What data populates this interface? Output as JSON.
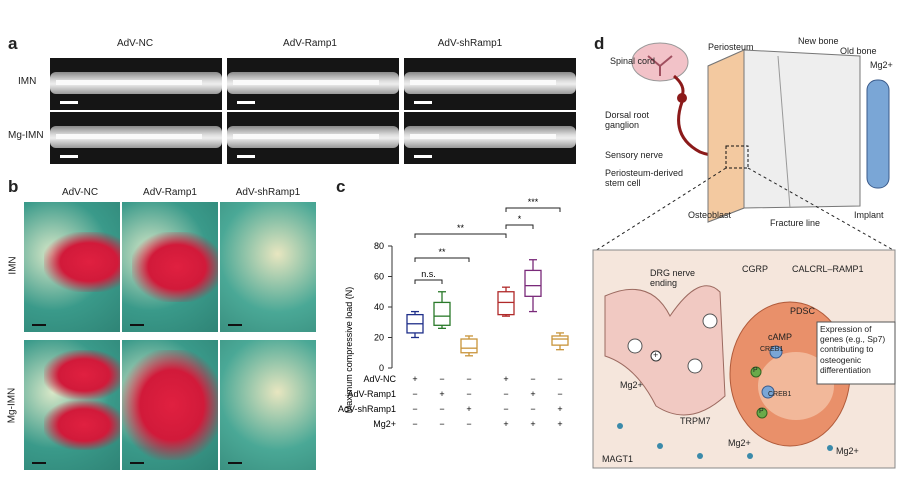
{
  "panels": {
    "a": "a",
    "b": "b",
    "c": "c",
    "d": "d"
  },
  "panel_a": {
    "columns": [
      "AdV-NC",
      "AdV-Ramp1",
      "AdV-shRamp1"
    ],
    "rows": [
      "IMN",
      "Mg-IMN"
    ]
  },
  "panel_b": {
    "columns": [
      "AdV-NC",
      "AdV-Ramp1",
      "AdV-shRamp1"
    ],
    "rows": [
      "IMN",
      "Mg-IMN"
    ]
  },
  "chart_data": {
    "type": "boxplot",
    "ylabel": "Maximum compressive load (N)",
    "ylim": [
      0,
      80
    ],
    "yticks": [
      "0",
      "20",
      "40",
      "60",
      "80"
    ],
    "groups": [
      {
        "color": "#1f2f8a",
        "min": 20,
        "q1": 23,
        "median": 29,
        "q3": 35,
        "max": 37
      },
      {
        "color": "#2a7a2a",
        "min": 26,
        "q1": 28,
        "median": 34,
        "q3": 43,
        "max": 50
      },
      {
        "color": "#c8943a",
        "min": 8,
        "q1": 10,
        "median": 13,
        "q3": 19,
        "max": 21
      },
      {
        "color": "#b02a2a",
        "min": 34,
        "q1": 35,
        "median": 43,
        "q3": 50,
        "max": 53
      },
      {
        "color": "#7a2a7a",
        "min": 37,
        "q1": 47,
        "median": 54,
        "q3": 64,
        "max": 71
      },
      {
        "color": "#c8943a",
        "min": 12,
        "q1": 15,
        "median": 19,
        "q3": 21,
        "max": 23
      }
    ],
    "significance": [
      "**",
      "**",
      "n.s.",
      "***",
      "*"
    ],
    "conditions": [
      {
        "label": "AdV-NC",
        "marks": [
          "+",
          "−",
          "−",
          "+",
          "−",
          "−"
        ]
      },
      {
        "label": "AdV-Ramp1",
        "marks": [
          "−",
          "+",
          "−",
          "−",
          "+",
          "−"
        ]
      },
      {
        "label": "AdV-shRamp1",
        "marks": [
          "−",
          "−",
          "+",
          "−",
          "−",
          "+"
        ]
      },
      {
        "label": "Mg2+",
        "marks": [
          "−",
          "−",
          "−",
          "+",
          "+",
          "+"
        ]
      }
    ]
  },
  "panel_d": {
    "top": {
      "spinal_cord": "Spinal cord",
      "drg": "Dorsal root ganglion",
      "sensory_nerve": "Sensory nerve",
      "psc": "Periosteum-derived stem cell",
      "periosteum": "Periosteum",
      "new_bone": "New bone",
      "old_bone": "Old bone",
      "mg": "Mg2+",
      "osteoblast": "Osteoblast",
      "fracture_line": "Fracture line",
      "implant": "Implant"
    },
    "bottom": {
      "drg_ending": "DRG nerve ending",
      "cgrp": "CGRP",
      "receptor": "CALCRL–RAMP1",
      "pdsc": "PDSC",
      "camp": "cAMP",
      "creb1a": "CREB1",
      "creb1b": "CREB1",
      "p1": "P",
      "p2": "P",
      "plus": "+",
      "mg_in": "Mg2+",
      "trpm7": "TRPM7",
      "magt1": "MAGT1",
      "mg_out1": "Mg2+",
      "mg_out2": "Mg2+",
      "expression": "Expression of genes (e.g., Sp7) contributing to osteogenic differentiation"
    }
  }
}
